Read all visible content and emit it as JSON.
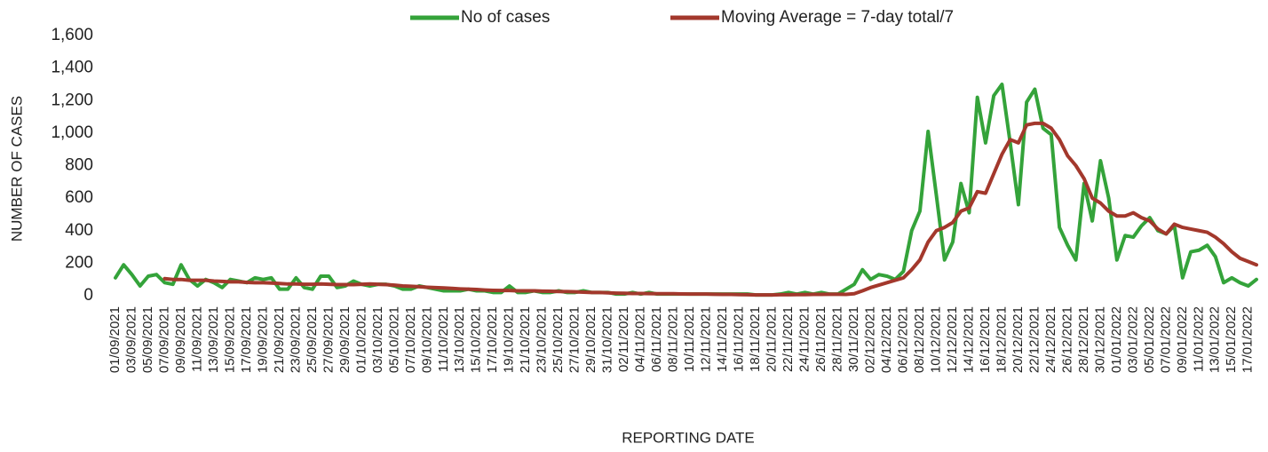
{
  "chart_data": {
    "type": "line",
    "y_axis_label": "NUMBER OF CASES",
    "x_axis_label": "REPORTING DATE",
    "ylim": [
      0,
      1600
    ],
    "yticks": [
      0,
      200,
      400,
      600,
      800,
      {
        "value": 1000,
        "label": "1,000"
      },
      {
        "value": 1200,
        "label": "1,200"
      },
      {
        "value": 1400,
        "label": "1,400"
      },
      {
        "value": 1600,
        "label": "1,600"
      }
    ],
    "categories": [
      "01/09/2021",
      null,
      "03/09/2021",
      null,
      "05/09/2021",
      null,
      "07/09/2021",
      null,
      "09/09/2021",
      null,
      "11/09/2021",
      null,
      "13/09/2021",
      null,
      "15/09/2021",
      null,
      "17/09/2021",
      null,
      "19/09/2021",
      null,
      "21/09/2021",
      null,
      "23/09/2021",
      null,
      "25/09/2021",
      null,
      "27/09/2021",
      null,
      "29/09/2021",
      null,
      "01/10/2021",
      null,
      "03/10/2021",
      null,
      "05/10/2021",
      null,
      "07/10/2021",
      null,
      "09/10/2021",
      null,
      "11/10/2021",
      null,
      "13/10/2021",
      null,
      "15/10/2021",
      null,
      "17/10/2021",
      null,
      "19/10/2021",
      null,
      "21/10/2021",
      null,
      "23/10/2021",
      null,
      "25/10/2021",
      null,
      "27/10/2021",
      null,
      "29/10/2021",
      null,
      "31/10/2021",
      null,
      "02/11/2021",
      null,
      "04/11/2021",
      null,
      "06/11/2021",
      null,
      "08/11/2021",
      null,
      "10/11/2021",
      null,
      "12/11/2021",
      null,
      "14/11/2021",
      null,
      "16/11/2021",
      null,
      "18/11/2021",
      null,
      "20/11/2021",
      null,
      "22/11/2021",
      null,
      "24/11/2021",
      null,
      "26/11/2021",
      null,
      "28/11/2021",
      null,
      "30/11/2021",
      null,
      "02/12/2021",
      null,
      "04/12/2021",
      null,
      "06/12/2021",
      null,
      "08/12/2021",
      null,
      "10/12/2021",
      null,
      "12/12/2021",
      null,
      "14/12/2021",
      null,
      "16/12/2021",
      null,
      "18/12/2021",
      null,
      "20/12/2021",
      null,
      "22/12/2021",
      null,
      "24/12/2021",
      null,
      "26/12/2021",
      null,
      "28/12/2021",
      null,
      "30/12/2021",
      null,
      "01/01/2022",
      null,
      "03/01/2022",
      null,
      "05/01/2022",
      null,
      "07/01/2022",
      null,
      "09/01/2022",
      null,
      "11/01/2022",
      null,
      "13/01/2022",
      null,
      "15/01/2022",
      null,
      "17/01/2022",
      null
    ],
    "series": [
      {
        "name": "No of cases",
        "color": "#34a33a",
        "values": [
          110,
          190,
          130,
          60,
          120,
          130,
          80,
          70,
          190,
          100,
          60,
          100,
          80,
          50,
          100,
          90,
          80,
          110,
          100,
          110,
          40,
          40,
          110,
          50,
          40,
          120,
          120,
          50,
          60,
          90,
          70,
          60,
          70,
          70,
          60,
          40,
          40,
          60,
          50,
          40,
          30,
          30,
          30,
          40,
          30,
          30,
          20,
          20,
          60,
          20,
          20,
          30,
          20,
          20,
          30,
          20,
          20,
          30,
          20,
          20,
          20,
          10,
          10,
          20,
          10,
          20,
          10,
          10,
          10,
          10,
          10,
          10,
          10,
          10,
          10,
          10,
          10,
          10,
          5,
          5,
          5,
          10,
          20,
          10,
          20,
          10,
          20,
          10,
          10,
          40,
          70,
          160,
          100,
          130,
          120,
          100,
          150,
          400,
          520,
          1010,
          620,
          220,
          330,
          690,
          510,
          1220,
          940,
          1230,
          1300,
          940,
          560,
          1190,
          1270,
          1030,
          990,
          420,
          310,
          220,
          690,
          460,
          830,
          600,
          220,
          370,
          360,
          430,
          480,
          400,
          380,
          430,
          110,
          270,
          280,
          310,
          240,
          80,
          110,
          80,
          60,
          100
        ]
      },
      {
        "name": "Moving Average = 7-day total/7",
        "color": "#a3382c",
        "values": [
          null,
          null,
          null,
          null,
          null,
          null,
          105,
          100,
          100,
          95,
          95,
          95,
          90,
          88,
          85,
          85,
          82,
          80,
          80,
          78,
          75,
          72,
          72,
          70,
          70,
          72,
          70,
          68,
          68,
          68,
          70,
          72,
          70,
          68,
          65,
          60,
          58,
          55,
          52,
          50,
          48,
          45,
          42,
          40,
          38,
          35,
          33,
          32,
          32,
          30,
          30,
          30,
          28,
          27,
          26,
          25,
          24,
          22,
          20,
          20,
          18,
          16,
          15,
          14,
          14,
          13,
          12,
          12,
          12,
          11,
          10,
          10,
          10,
          9,
          8,
          8,
          7,
          6,
          5,
          5,
          5,
          6,
          6,
          7,
          7,
          8,
          8,
          9,
          9,
          8,
          12,
          30,
          50,
          65,
          80,
          95,
          110,
          160,
          220,
          330,
          400,
          420,
          450,
          520,
          540,
          640,
          630,
          750,
          870,
          960,
          940,
          1050,
          1060,
          1060,
          1030,
          960,
          860,
          800,
          720,
          600,
          570,
          520,
          490,
          490,
          510,
          480,
          460,
          410,
          380,
          440,
          420,
          410,
          400,
          390,
          360,
          320,
          270,
          230,
          210,
          190
        ]
      }
    ]
  }
}
